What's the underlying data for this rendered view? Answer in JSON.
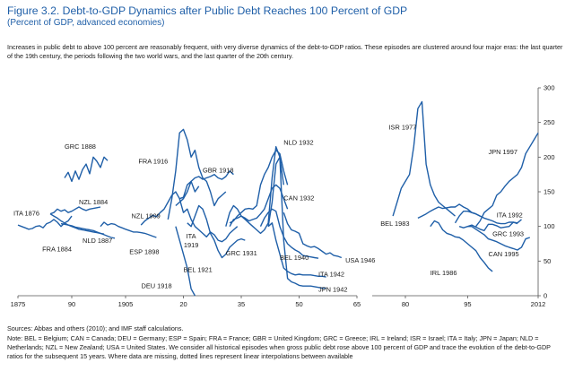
{
  "figure": {
    "title": "Figure 3.2.  Debt-to-GDP Dynamics after Public Debt Reaches 100 Percent of GDP",
    "subtitle": "(Percent of GDP, advanced economies)",
    "caption": "Increases in public debt to above 100 percent are reasonably frequent, with very diverse dynamics of the debt-to-GDP ratios. These episodes are clustered around four major eras: the last quarter of the 19th century, the periods following the two world wars, and the last quarter of the 20th century."
  },
  "sources": "Sources: Abbas and others (2010); and IMF staff calculations.",
  "note": "Note: BEL = Belgium; CAN = Canada; DEU = Germany; ESP = Spain; FRA = France; GBR = United Kingdom; GRC = Greece; IRL = Ireland; ISR = Israel; ITA = Italy; JPN = Japan; NLD = Netherlands; NZL = New Zealand; USA = United States. We consider all historical episodes when gross public debt rose above 100 percent of GDP and trace the evolution of the debt-to-GDP ratios for the subsequent 15 years. Where data are missing, dotted lines represent linear interpolations between available",
  "colors": {
    "series": "#1f5fa8",
    "axis": "#555555",
    "text": "#1a1a1a",
    "title": "#1f5fa8"
  },
  "chart_data": {
    "type": "line",
    "xlabel": "",
    "ylabel": "",
    "y_axis_position": "right",
    "ylim": [
      0,
      300
    ],
    "y_ticks": [
      0,
      50,
      100,
      150,
      200,
      250,
      300
    ],
    "x_axis_segments": [
      {
        "xlim": [
          1875,
          1905
        ],
        "ticks": [
          1875,
          1890,
          1905
        ],
        "labels": [
          "1875",
          "90",
          "1905"
        ]
      },
      {
        "xlim": [
          1905,
          1965
        ],
        "ticks": [
          1920,
          1935,
          1950,
          1965
        ],
        "labels": [
          "20",
          "35",
          "50",
          "65"
        ]
      },
      {
        "xlim": [
          1972,
          2012
        ],
        "ticks": [
          1980,
          1995,
          2012
        ],
        "labels": [
          "80",
          "95",
          "2012"
        ]
      }
    ],
    "series": [
      {
        "name": "ITA 1876",
        "x": [
          1875,
          1876,
          1877,
          1878,
          1879,
          1880,
          1881,
          1882,
          1883,
          1884,
          1885,
          1886,
          1887,
          1888,
          1889,
          1890
        ],
        "y": [
          102,
          100,
          98,
          96,
          97,
          100,
          101,
          98,
          104,
          106,
          110,
          106,
          100,
          105,
          108,
          115
        ]
      },
      {
        "name": "FRA 1884",
        "x": [
          1884,
          1885,
          1886,
          1887,
          1888,
          1889,
          1890,
          1891,
          1892,
          1893,
          1894,
          1895,
          1896,
          1897,
          1898,
          1899
        ],
        "y": [
          118,
          115,
          112,
          108,
          105,
          102,
          100,
          98,
          96,
          95,
          94,
          93,
          92,
          91,
          90,
          89
        ]
      },
      {
        "name": "GRC 1888",
        "x": [
          1888,
          1889,
          1890,
          1891,
          1892,
          1893,
          1894,
          1895,
          1896,
          1897,
          1898,
          1899,
          1900
        ],
        "y": [
          170,
          178,
          165,
          180,
          168,
          182,
          190,
          176,
          200,
          194,
          185,
          200,
          195
        ]
      },
      {
        "name": "NZL 1884",
        "x": [
          1884,
          1885,
          1886,
          1887,
          1888,
          1889,
          1890,
          1891,
          1892,
          1893,
          1894,
          1895,
          1896,
          1897,
          1898
        ],
        "y": [
          118,
          120,
          125,
          122,
          124,
          120,
          122,
          125,
          128,
          125,
          123,
          125,
          126,
          127,
          128
        ]
      },
      {
        "name": "NLD 1887",
        "x": [
          1887,
          1888,
          1889,
          1890,
          1891,
          1892,
          1893,
          1894,
          1895,
          1896,
          1897,
          1898,
          1899,
          1900,
          1901,
          1902
        ],
        "y": [
          104,
          103,
          102,
          101,
          99,
          98,
          97,
          96,
          95,
          94,
          92,
          90,
          88,
          86,
          84,
          83
        ]
      },
      {
        "name": "ESP 1898",
        "x": [
          1898,
          1899,
          1900,
          1901,
          1902,
          1903,
          1904,
          1905,
          1906,
          1907,
          1908,
          1909,
          1910,
          1911,
          1912,
          1913
        ],
        "y": [
          100,
          106,
          102,
          104,
          103,
          100,
          98,
          96,
          94,
          92,
          92,
          91,
          90,
          88,
          86,
          84
        ]
      },
      {
        "name": "NZL 1909",
        "x": [
          1909,
          1910,
          1911,
          1912,
          1913,
          1914,
          1915,
          1916,
          1917,
          1918,
          1919,
          1920,
          1921,
          1922,
          1923,
          1924
        ],
        "y": [
          102,
          108,
          112,
          116,
          114,
          120,
          125,
          135,
          145,
          150,
          140,
          142,
          160,
          165,
          150,
          158
        ]
      },
      {
        "name": "FRA 1916",
        "x": [
          1916,
          1917,
          1918,
          1919,
          1920,
          1921,
          1922,
          1923,
          1924,
          1925,
          1926,
          1927,
          1928,
          1929,
          1930,
          1931
        ],
        "y": [
          110,
          140,
          180,
          235,
          240,
          225,
          200,
          210,
          185,
          170,
          165,
          150,
          130,
          140,
          145,
          150
        ]
      },
      {
        "name": "GBR 1918",
        "x": [
          1918,
          1919,
          1920,
          1921,
          1922,
          1923,
          1924,
          1925,
          1926,
          1927,
          1928,
          1929,
          1930,
          1931,
          1932,
          1933
        ],
        "y": [
          130,
          135,
          140,
          150,
          165,
          170,
          172,
          168,
          170,
          172,
          175,
          170,
          168,
          172,
          180,
          175
        ]
      },
      {
        "name": "ITA 1919",
        "x": [
          1919,
          1920,
          1921,
          1922,
          1923,
          1924,
          1925,
          1926,
          1927,
          1928,
          1929,
          1930,
          1931,
          1932,
          1933,
          1934
        ],
        "y": [
          140,
          120,
          125,
          110,
          100,
          95,
          90,
          85,
          92,
          88,
          80,
          78,
          82,
          90,
          95,
          100
        ]
      },
      {
        "name": "BEL 1921",
        "x": [
          1921,
          1922,
          1923,
          1924,
          1925,
          1926,
          1927,
          1928,
          1929,
          1930,
          1931,
          1932,
          1933,
          1934,
          1935,
          1936
        ],
        "y": [
          105,
          100,
          115,
          130,
          125,
          110,
          90,
          80,
          65,
          55,
          60,
          70,
          75,
          80,
          82,
          80
        ]
      },
      {
        "name": "DEU 1918",
        "x": [
          1918,
          1919,
          1920,
          1921,
          1922,
          1923
        ],
        "y": [
          100,
          80,
          60,
          40,
          10,
          0
        ]
      },
      {
        "name": "GRC 1931",
        "x": [
          1931,
          1932,
          1933,
          1934,
          1935,
          1936,
          1937,
          1938,
          1939,
          1940,
          1941,
          1942,
          1943,
          1944,
          1945,
          1946
        ],
        "y": [
          100,
          120,
          130,
          125,
          115,
          110,
          105,
          100,
          95,
          90,
          95,
          105,
          170,
          215,
          200,
          160
        ]
      },
      {
        "name": "NLD 1932",
        "x": [
          1932,
          1933,
          1934,
          1935,
          1936,
          1937,
          1938,
          1939,
          1940,
          1941,
          1942,
          1943,
          1944,
          1945,
          1946,
          1947
        ],
        "y": [
          105,
          108,
          115,
          120,
          125,
          126,
          125,
          130,
          160,
          175,
          185,
          200,
          210,
          205,
          180,
          160
        ]
      },
      {
        "name": "CAN 1932",
        "x": [
          1932,
          1933,
          1934,
          1935,
          1936,
          1937,
          1938,
          1939,
          1940,
          1941,
          1942,
          1943,
          1944,
          1945,
          1946,
          1947
        ],
        "y": [
          100,
          110,
          112,
          115,
          112,
          108,
          110,
          112,
          118,
          125,
          140,
          155,
          160,
          155,
          140,
          125
        ]
      },
      {
        "name": "BEL 1940",
        "x": [
          1940,
          1941,
          1942,
          1943,
          1944,
          1945,
          1946,
          1947,
          1948,
          1949,
          1950,
          1951,
          1952,
          1953,
          1954,
          1955
        ],
        "y": [
          100,
          112,
          120,
          125,
          122,
          100,
          85,
          75,
          70,
          66,
          63,
          58,
          57,
          56,
          55,
          54
        ]
      },
      {
        "name": "USA 1946",
        "x": [
          1946,
          1947,
          1948,
          1949,
          1950,
          1951,
          1952,
          1953,
          1954,
          1955,
          1956,
          1957,
          1958,
          1959,
          1960,
          1961
        ],
        "y": [
          120,
          104,
          95,
          93,
          90,
          75,
          72,
          70,
          71,
          68,
          64,
          60,
          62,
          58,
          57,
          55
        ]
      },
      {
        "name": "ITA 1942",
        "x": [
          1942,
          1943,
          1944,
          1945,
          1946,
          1947,
          1948,
          1949,
          1950,
          1951,
          1952,
          1953,
          1954,
          1955,
          1956,
          1957
        ],
        "y": [
          100,
          105,
          80,
          60,
          40,
          35,
          32,
          30,
          31,
          30,
          30,
          30,
          29,
          28,
          28,
          27
        ]
      },
      {
        "name": "JPN 1942",
        "x": [
          1942,
          1943,
          1944,
          1945,
          1946,
          1947,
          1948,
          1949,
          1950,
          1951,
          1952,
          1953,
          1954,
          1955,
          1956,
          1957
        ],
        "y": [
          100,
          135,
          190,
          200,
          80,
          25,
          20,
          18,
          15,
          14,
          14,
          14,
          13,
          12,
          11,
          11
        ]
      },
      {
        "name": "ISR 1977",
        "x": [
          1977,
          1978,
          1979,
          1980,
          1981,
          1982,
          1983,
          1984,
          1985,
          1986,
          1987,
          1988,
          1989,
          1990,
          1991,
          1992
        ],
        "y": [
          115,
          135,
          155,
          165,
          175,
          215,
          270,
          280,
          190,
          160,
          145,
          135,
          130,
          125,
          120,
          115
        ]
      },
      {
        "name": "BEL 1983",
        "x": [
          1983,
          1984,
          1985,
          1986,
          1987,
          1988,
          1989,
          1990,
          1991,
          1992,
          1993,
          1994,
          1995,
          1996,
          1997,
          1998
        ],
        "y": [
          112,
          115,
          118,
          122,
          125,
          128,
          126,
          127,
          128,
          128,
          132,
          128,
          125,
          120,
          118,
          115
        ]
      },
      {
        "name": "IRL 1986",
        "x": [
          1986,
          1987,
          1988,
          1989,
          1990,
          1991,
          1992,
          1993,
          1994,
          1995,
          1996,
          1997,
          1998,
          1999,
          2000,
          2001
        ],
        "y": [
          100,
          108,
          105,
          95,
          90,
          88,
          85,
          84,
          80,
          75,
          70,
          65,
          55,
          48,
          40,
          35
        ]
      },
      {
        "name": "JPN 1997",
        "x": [
          1997,
          1998,
          1999,
          2000,
          2001,
          2002,
          2003,
          2004,
          2005,
          2006,
          2007,
          2008,
          2009,
          2010,
          2011,
          2012
        ],
        "y": [
          100,
          108,
          120,
          125,
          130,
          145,
          150,
          158,
          165,
          170,
          175,
          185,
          205,
          215,
          225,
          235
        ]
      },
      {
        "name": "ITA 1992",
        "x": [
          1992,
          1993,
          1994,
          1995,
          1996,
          1997,
          1998,
          1999,
          2000,
          2001,
          2002,
          2003,
          2004,
          2005,
          2006,
          2007
        ],
        "y": [
          105,
          115,
          122,
          122,
          120,
          118,
          115,
          112,
          110,
          108,
          105,
          104,
          104,
          106,
          106,
          104
        ]
      },
      {
        "name": "GRC 1993",
        "x": [
          1993,
          1994,
          1995,
          1996,
          1997,
          1998,
          1999,
          2000,
          2001,
          2002,
          2003,
          2004,
          2005,
          2006,
          2007,
          2008
        ],
        "y": [
          100,
          98,
          100,
          102,
          99,
          96,
          94,
          103,
          103,
          101,
          98,
          99,
          100,
          106,
          105,
          110
        ]
      },
      {
        "name": "CAN 1995",
        "x": [
          1995,
          1996,
          1997,
          1998,
          1999,
          2000,
          2001,
          2002,
          2003,
          2004,
          2005,
          2006,
          2007,
          2008,
          2009,
          2010
        ],
        "y": [
          100,
          100,
          96,
          92,
          88,
          82,
          80,
          78,
          75,
          72,
          70,
          68,
          66,
          70,
          82,
          84
        ]
      }
    ]
  },
  "labels": [
    {
      "text": "ITA 1876",
      "x": 1881,
      "y": 116,
      "anchor": "end"
    },
    {
      "text": "GRC 1888",
      "x": 1888,
      "y": 212,
      "anchor": "start"
    },
    {
      "text": "NZL 1884",
      "x": 1892,
      "y": 132,
      "anchor": "start"
    },
    {
      "text": "FRA 1884",
      "x": 1890,
      "y": 64,
      "anchor": "end"
    },
    {
      "text": "NLD 1887",
      "x": 1893,
      "y": 76,
      "anchor": "start"
    },
    {
      "text": "ESP 1898",
      "x": 1906,
      "y": 60,
      "anchor": "start"
    },
    {
      "text": "NZL 1909",
      "x": 1914,
      "y": 112,
      "anchor": "end"
    },
    {
      "text": "FRA 1916",
      "x": 1916,
      "y": 191,
      "anchor": "end"
    },
    {
      "text": "GBR 1918",
      "x": 1925,
      "y": 178,
      "anchor": "start"
    },
    {
      "text": "ITA",
      "x": 1922,
      "y": 83,
      "anchor": "middle"
    },
    {
      "text": "1919",
      "x": 1922,
      "y": 70,
      "anchor": "middle"
    },
    {
      "text": "BEL 1921",
      "x": 1920,
      "y": 34,
      "anchor": "start"
    },
    {
      "text": "DEU 1918",
      "x": 1917,
      "y": 11,
      "anchor": "end"
    },
    {
      "text": "GRC 1931",
      "x": 1931,
      "y": 58,
      "anchor": "start"
    },
    {
      "text": "NLD 1932",
      "x": 1946,
      "y": 218,
      "anchor": "start"
    },
    {
      "text": "CAN 1932",
      "x": 1946,
      "y": 138,
      "anchor": "start"
    },
    {
      "text": "BEL 1940",
      "x": 1945,
      "y": 52,
      "anchor": "start"
    },
    {
      "text": "USA 1946",
      "x": 1962,
      "y": 48,
      "anchor": "start"
    },
    {
      "text": "ITA 1942",
      "x": 1955,
      "y": 28,
      "anchor": "start"
    },
    {
      "text": "JPN 1942",
      "x": 1955,
      "y": 6,
      "anchor": "start"
    },
    {
      "text": "ISR 1977",
      "x": 1976,
      "y": 240,
      "anchor": "start"
    },
    {
      "text": "BEL 1983",
      "x": 1974,
      "y": 101,
      "anchor": "start"
    },
    {
      "text": "IRL 1986",
      "x": 1986,
      "y": 30,
      "anchor": "start"
    },
    {
      "text": "JPN 1997",
      "x": 2000,
      "y": 204,
      "anchor": "start"
    },
    {
      "text": "ITA 1992",
      "x": 2002,
      "y": 113,
      "anchor": "start"
    },
    {
      "text": "GRC 1993",
      "x": 2001,
      "y": 86,
      "anchor": "start"
    },
    {
      "text": "CAN 1995",
      "x": 2000,
      "y": 57,
      "anchor": "start"
    }
  ]
}
